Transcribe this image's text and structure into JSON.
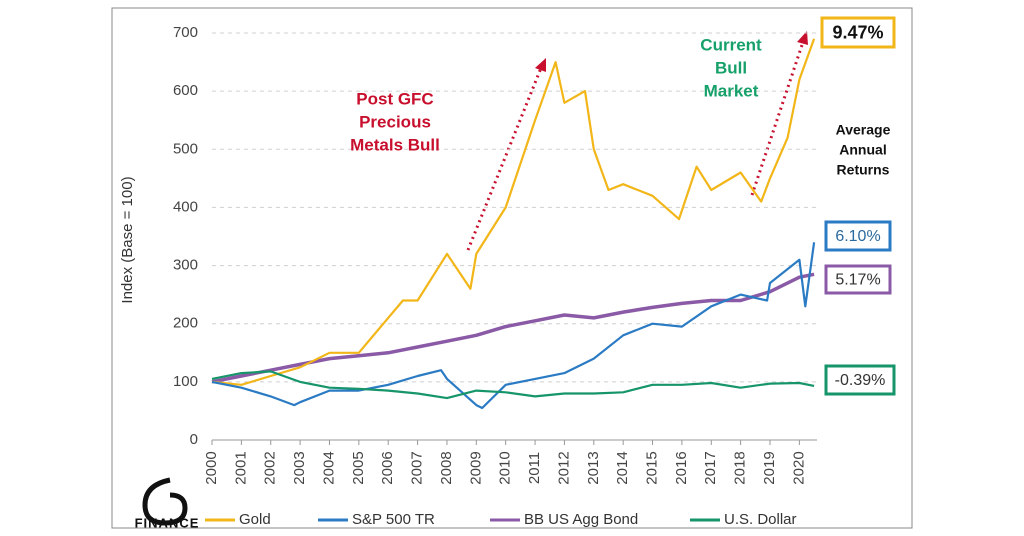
{
  "chart_data": {
    "type": "line",
    "y_label": "Index (Base = 100)",
    "xlim": [
      2000,
      2020.6
    ],
    "ylim": [
      0,
      700
    ],
    "xticks": [
      2000,
      2001,
      2002,
      2003,
      2004,
      2005,
      2006,
      2007,
      2008,
      2009,
      2010,
      2011,
      2012,
      2013,
      2014,
      2015,
      2016,
      2017,
      2018,
      2019,
      2020
    ],
    "yticks": [
      0,
      100,
      200,
      300,
      400,
      500,
      600,
      700
    ],
    "grid": true,
    "series": [
      {
        "name": "Gold",
        "color": "#f2b619",
        "x": [
          2000,
          2001,
          2002,
          2003,
          2004,
          2005,
          2006,
          2006.5,
          2007,
          2008,
          2008.8,
          2009,
          2010,
          2011,
          2011.7,
          2012,
          2012.7,
          2013,
          2013.5,
          2014,
          2015,
          2015.9,
          2016.5,
          2017,
          2018,
          2018.7,
          2019,
          2019.6,
          2020,
          2020.5
        ],
        "values": [
          100,
          95,
          110,
          125,
          150,
          150,
          210,
          240,
          240,
          320,
          260,
          320,
          400,
          550,
          650,
          580,
          600,
          500,
          430,
          440,
          420,
          380,
          470,
          430,
          460,
          410,
          450,
          520,
          620,
          690
        ]
      },
      {
        "name": "S&P 500 TR",
        "color": "#2b7bc4",
        "x": [
          2000,
          2001,
          2002,
          2002.8,
          2003,
          2004,
          2005,
          2006,
          2007,
          2007.8,
          2008,
          2009,
          2009.2,
          2010,
          2011,
          2012,
          2013,
          2014,
          2015,
          2016,
          2017,
          2018,
          2018.9,
          2019,
          2020,
          2020.2,
          2020.5
        ],
        "values": [
          100,
          90,
          75,
          60,
          65,
          85,
          85,
          95,
          110,
          120,
          105,
          60,
          55,
          95,
          105,
          115,
          140,
          180,
          200,
          195,
          230,
          250,
          240,
          270,
          310,
          230,
          340
        ]
      },
      {
        "name": "BB US Agg Bond",
        "color": "#8a5aa6",
        "x": [
          2000,
          2001,
          2002,
          2003,
          2004,
          2005,
          2006,
          2007,
          2008,
          2009,
          2010,
          2011,
          2012,
          2013,
          2014,
          2015,
          2016,
          2017,
          2018,
          2019,
          2020,
          2020.5
        ],
        "values": [
          100,
          110,
          120,
          130,
          140,
          145,
          150,
          160,
          170,
          180,
          195,
          205,
          215,
          210,
          220,
          228,
          235,
          240,
          240,
          255,
          280,
          285
        ]
      },
      {
        "name": "U.S. Dollar",
        "color": "#16956a",
        "x": [
          2000,
          2001,
          2002,
          2003,
          2004,
          2005,
          2006,
          2007,
          2008,
          2009,
          2010,
          2011,
          2012,
          2013,
          2014,
          2015,
          2016,
          2017,
          2018,
          2019,
          2020,
          2020.5
        ],
        "values": [
          105,
          115,
          118,
          100,
          90,
          88,
          85,
          80,
          72,
          85,
          82,
          75,
          80,
          80,
          82,
          95,
          95,
          98,
          90,
          97,
          98,
          93
        ]
      }
    ],
    "annotations": [
      {
        "lines": [
          "Post GFC",
          "Precious",
          "Metals Bull"
        ],
        "color": "#c8102e"
      },
      {
        "lines": [
          "Current",
          "Bull",
          "Market"
        ],
        "color": "#16a06a"
      }
    ],
    "returns_title": [
      "Average",
      "Annual",
      "Returns"
    ],
    "returns": [
      "9.47%",
      "6.10%",
      "5.17%",
      "-0.39%"
    ],
    "logo": "FINANCE"
  }
}
